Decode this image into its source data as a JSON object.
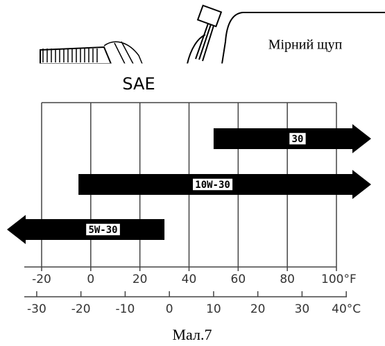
{
  "callout": "Мірний щуп",
  "caption": "Мал.7",
  "chart_data": {
    "type": "range-bar",
    "title": "SAE",
    "series": [
      {
        "name": "30",
        "from": 50,
        "to": null
      },
      {
        "name": "10W-30",
        "from": -5,
        "to": null
      },
      {
        "name": "5W-30",
        "from": null,
        "to": 30
      }
    ],
    "xlim": [
      -20,
      100
    ],
    "xticks": [
      -20,
      0,
      20,
      40,
      60,
      80,
      {
        "value": 100,
        "label": "100°F"
      }
    ],
    "x2ticks": [
      -30,
      -20,
      -10,
      0,
      10,
      20,
      30,
      {
        "value": 40,
        "label": "40°C"
      }
    ],
    "color": "#000000",
    "grid": true
  }
}
